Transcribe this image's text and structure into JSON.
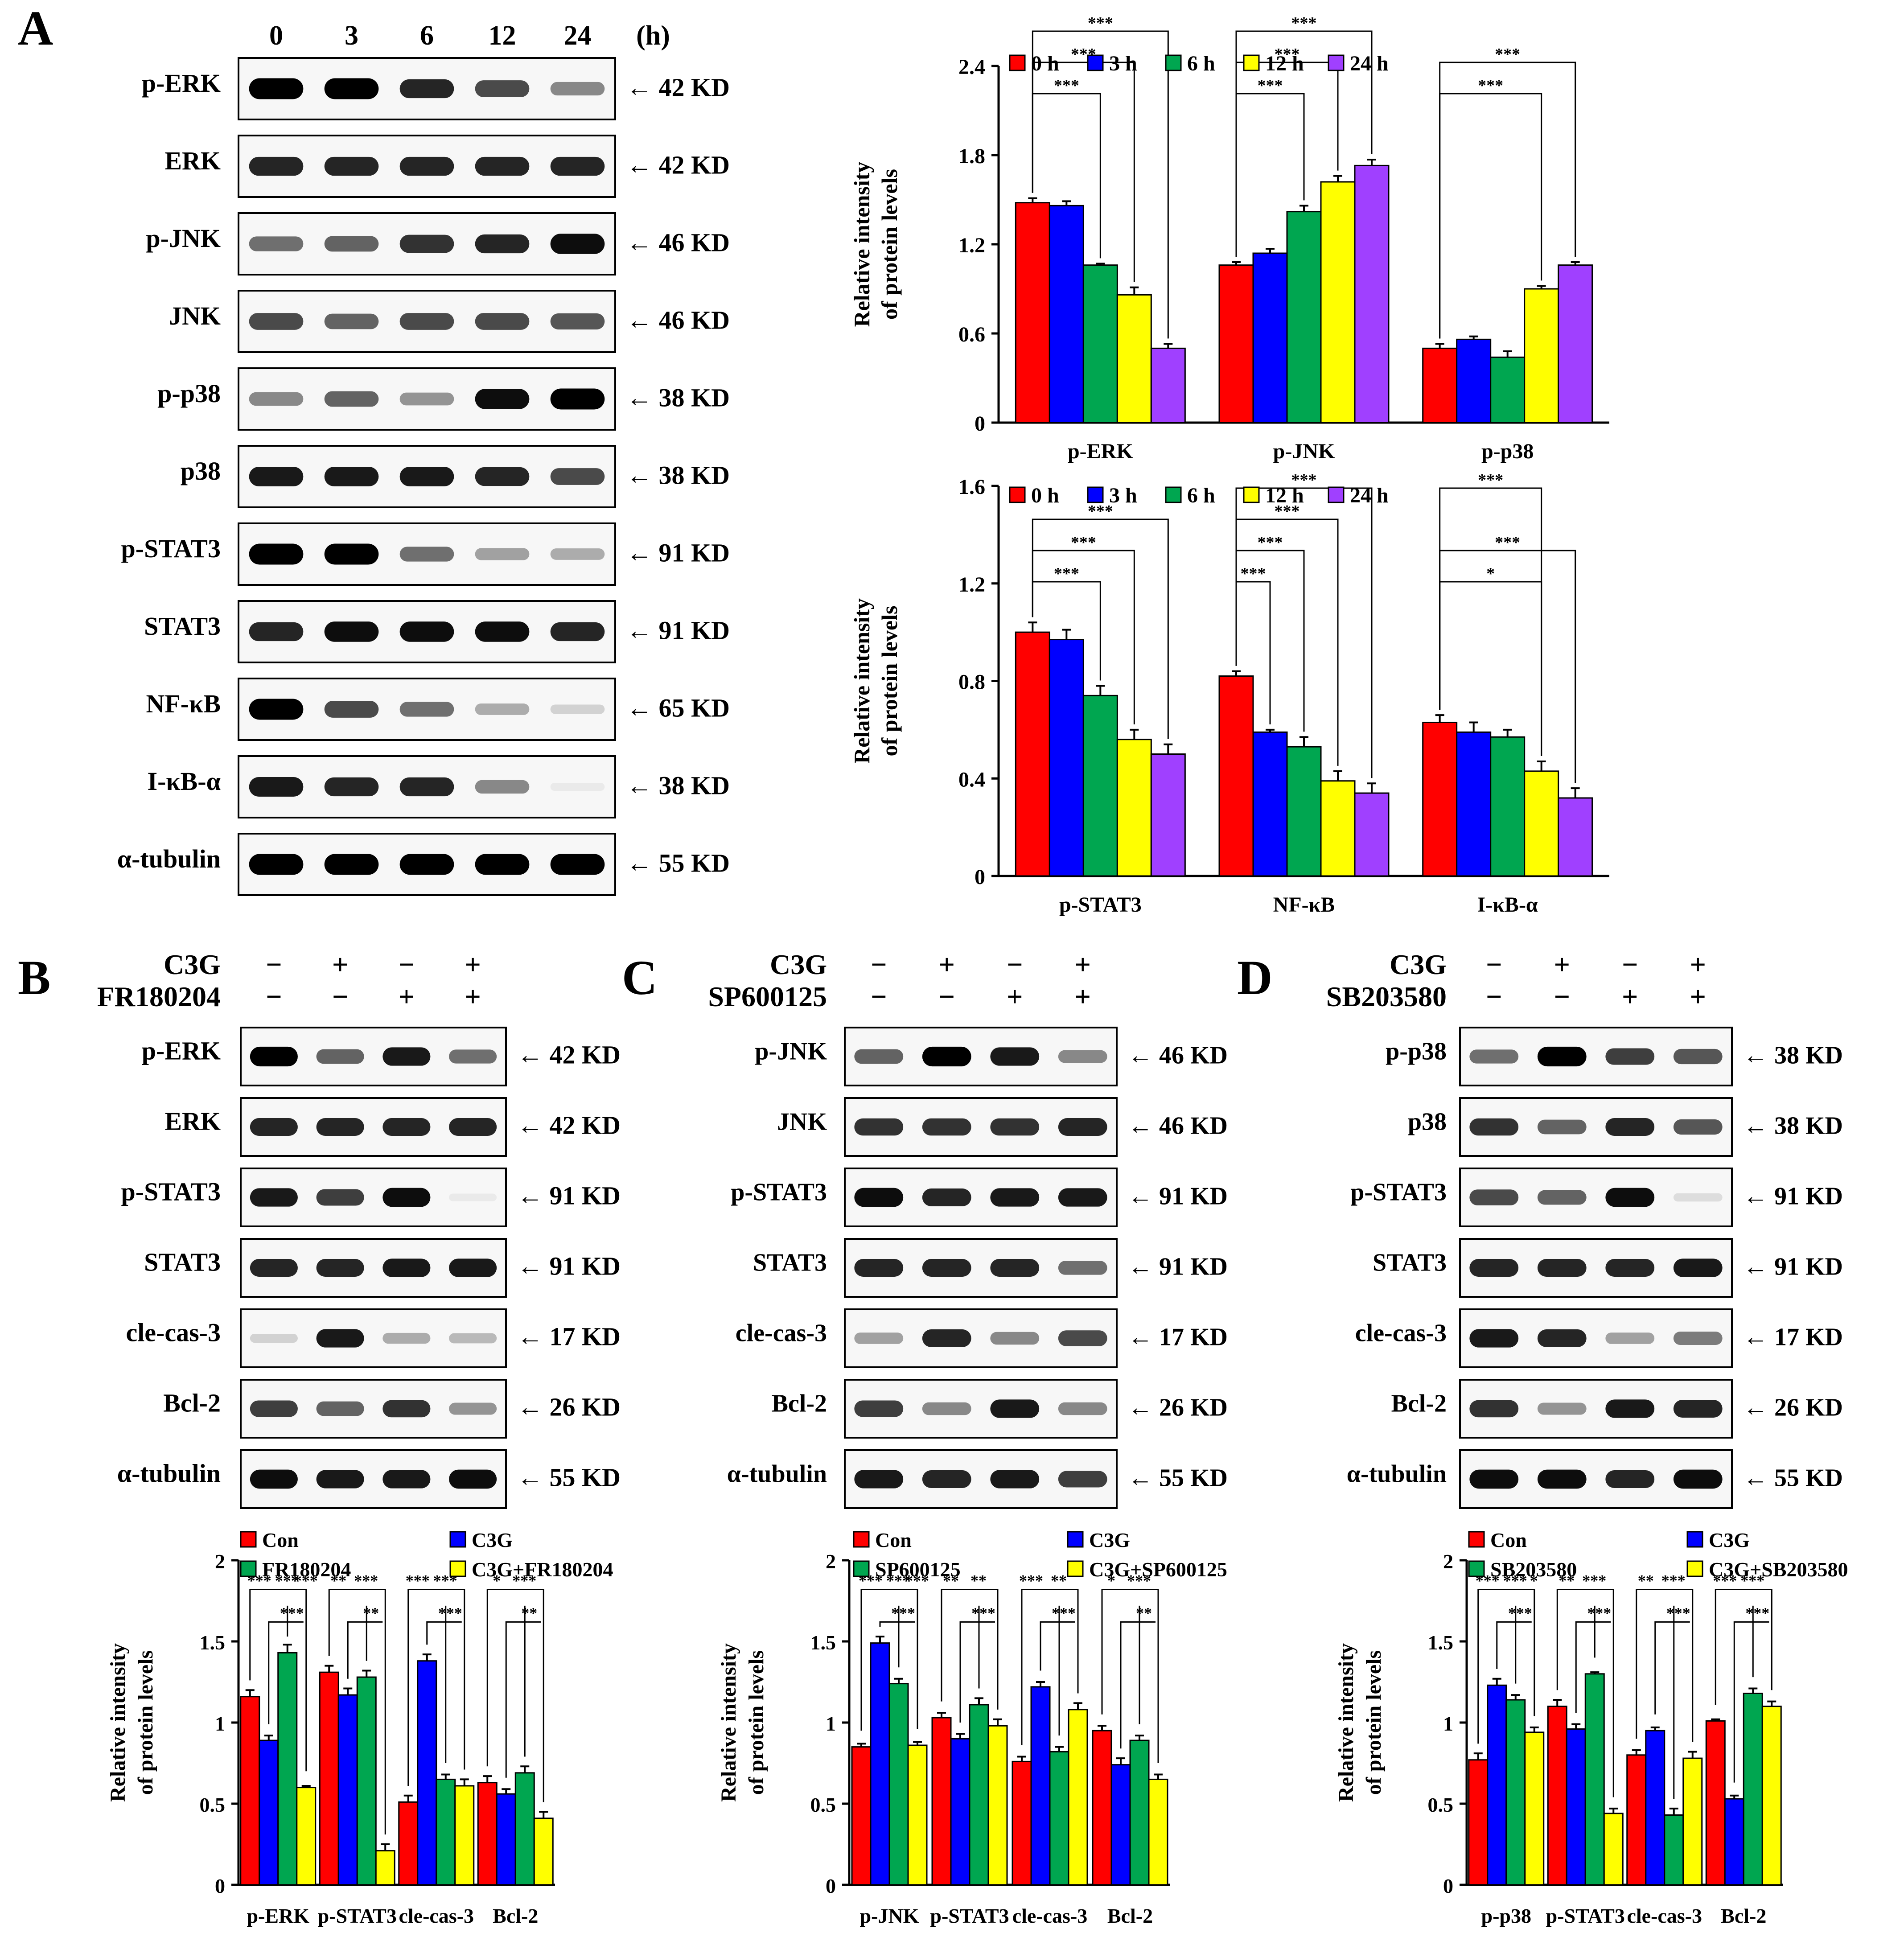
{
  "panel_labels": [
    "A",
    "B",
    "C",
    "D"
  ],
  "units": {
    "hours": "(h)"
  },
  "panelA": {
    "timepoints": [
      "0",
      "3",
      "6",
      "12",
      "24"
    ],
    "blots": [
      {
        "name": "p-ERK",
        "kd": "42 KD",
        "intensities": [
          1.0,
          1.0,
          0.85,
          0.7,
          0.45
        ]
      },
      {
        "name": "ERK",
        "kd": "42 KD",
        "intensities": [
          0.85,
          0.85,
          0.85,
          0.85,
          0.85
        ]
      },
      {
        "name": "p-JNK",
        "kd": "46 KD",
        "intensities": [
          0.55,
          0.6,
          0.8,
          0.85,
          0.95
        ]
      },
      {
        "name": "JNK",
        "kd": "46 KD",
        "intensities": [
          0.7,
          0.6,
          0.7,
          0.7,
          0.65
        ]
      },
      {
        "name": "p-p38",
        "kd": "38 KD",
        "intensities": [
          0.45,
          0.6,
          0.4,
          0.95,
          1.0
        ]
      },
      {
        "name": "p38",
        "kd": "38 KD",
        "intensities": [
          0.9,
          0.9,
          0.9,
          0.85,
          0.7
        ]
      },
      {
        "name": "p-STAT3",
        "kd": "91 KD",
        "intensities": [
          1.0,
          1.0,
          0.55,
          0.35,
          0.3
        ]
      },
      {
        "name": "STAT3",
        "kd": "91 KD",
        "intensities": [
          0.85,
          0.95,
          0.95,
          0.95,
          0.85
        ]
      },
      {
        "name": "NF-κB",
        "kd": "65 KD",
        "intensities": [
          1.0,
          0.7,
          0.55,
          0.3,
          0.15
        ]
      },
      {
        "name": "I-κB-α",
        "kd": "38 KD",
        "intensities": [
          0.9,
          0.85,
          0.85,
          0.45,
          0.05
        ]
      },
      {
        "name": "α-tubulin",
        "kd": "55 KD",
        "intensities": [
          1.0,
          1.0,
          1.0,
          1.0,
          1.0
        ]
      }
    ]
  },
  "panelB": {
    "treatments": [
      {
        "name": "C3G",
        "signs": [
          "−",
          "+",
          "−",
          "+"
        ]
      },
      {
        "name": "FR180204",
        "signs": [
          "−",
          "−",
          "+",
          "+"
        ]
      }
    ],
    "blots": [
      {
        "name": "p-ERK",
        "kd": "42 KD",
        "intensities": [
          1.0,
          0.6,
          0.9,
          0.55
        ]
      },
      {
        "name": "ERK",
        "kd": "42 KD",
        "intensities": [
          0.85,
          0.85,
          0.85,
          0.85
        ]
      },
      {
        "name": "p-STAT3",
        "kd": "91 KD",
        "intensities": [
          0.9,
          0.75,
          0.95,
          0.05
        ]
      },
      {
        "name": "STAT3",
        "kd": "91 KD",
        "intensities": [
          0.85,
          0.85,
          0.9,
          0.9
        ]
      },
      {
        "name": "cle-cas-3",
        "kd": "17 KD",
        "intensities": [
          0.15,
          0.9,
          0.3,
          0.25
        ]
      },
      {
        "name": "Bcl-2",
        "kd": "26 KD",
        "intensities": [
          0.75,
          0.6,
          0.8,
          0.4
        ]
      },
      {
        "name": "α-tubulin",
        "kd": "55 KD",
        "intensities": [
          0.95,
          0.9,
          0.9,
          0.95
        ]
      }
    ]
  },
  "panelC": {
    "treatments": [
      {
        "name": "C3G",
        "signs": [
          "−",
          "+",
          "−",
          "+"
        ]
      },
      {
        "name": "SP600125",
        "signs": [
          "−",
          "−",
          "+",
          "+"
        ]
      }
    ],
    "blots": [
      {
        "name": "p-JNK",
        "kd": "46 KD",
        "intensities": [
          0.6,
          1.0,
          0.9,
          0.45
        ]
      },
      {
        "name": "JNK",
        "kd": "46 KD",
        "intensities": [
          0.8,
          0.8,
          0.8,
          0.85
        ]
      },
      {
        "name": "p-STAT3",
        "kd": "91 KD",
        "intensities": [
          0.95,
          0.85,
          0.9,
          0.9
        ]
      },
      {
        "name": "STAT3",
        "kd": "91 KD",
        "intensities": [
          0.85,
          0.85,
          0.85,
          0.55
        ]
      },
      {
        "name": "cle-cas-3",
        "kd": "17 KD",
        "intensities": [
          0.35,
          0.85,
          0.45,
          0.7
        ]
      },
      {
        "name": "Bcl-2",
        "kd": "26 KD",
        "intensities": [
          0.75,
          0.45,
          0.9,
          0.45
        ]
      },
      {
        "name": "α-tubulin",
        "kd": "55 KD",
        "intensities": [
          0.9,
          0.85,
          0.9,
          0.75
        ]
      }
    ]
  },
  "panelD": {
    "treatments": [
      {
        "name": "C3G",
        "signs": [
          "−",
          "+",
          "−",
          "+"
        ]
      },
      {
        "name": "SB203580",
        "signs": [
          "−",
          "−",
          "+",
          "+"
        ]
      }
    ],
    "blots": [
      {
        "name": "p-p38",
        "kd": "38 KD",
        "intensities": [
          0.55,
          1.0,
          0.75,
          0.65
        ]
      },
      {
        "name": "p38",
        "kd": "38 KD",
        "intensities": [
          0.8,
          0.6,
          0.85,
          0.65
        ]
      },
      {
        "name": "p-STAT3",
        "kd": "91 KD",
        "intensities": [
          0.7,
          0.6,
          0.95,
          0.1
        ]
      },
      {
        "name": "STAT3",
        "kd": "91 KD",
        "intensities": [
          0.85,
          0.85,
          0.85,
          0.9
        ]
      },
      {
        "name": "cle-cas-3",
        "kd": "17 KD",
        "intensities": [
          0.9,
          0.85,
          0.35,
          0.5
        ]
      },
      {
        "name": "Bcl-2",
        "kd": "26 KD",
        "intensities": [
          0.8,
          0.4,
          0.9,
          0.85
        ]
      },
      {
        "name": "α-tubulin",
        "kd": "55 KD",
        "intensities": [
          0.95,
          0.95,
          0.85,
          0.95
        ]
      }
    ]
  },
  "colors": {
    "red": "#ff0000",
    "blue": "#0000ff",
    "green": "#00a650",
    "yellow": "#ffff00",
    "purple": "#a040ff"
  },
  "chart_data": [
    {
      "id": "A_top",
      "type": "bar",
      "ylabel": [
        "Relative intensity",
        "of protein levels"
      ],
      "ylim": [
        0,
        2.4
      ],
      "yticks": [
        "0",
        "0.6",
        "1.2",
        "1.8",
        "2.4"
      ],
      "categories": [
        "p-ERK",
        "p-JNK",
        "p-p38"
      ],
      "series": [
        {
          "name": "0 h",
          "color": "#ff0000",
          "values": [
            1.48,
            1.06,
            0.5
          ],
          "errors": [
            0.03,
            0.02,
            0.03
          ]
        },
        {
          "name": "3 h",
          "color": "#0000ff",
          "values": [
            1.46,
            1.14,
            0.56
          ],
          "errors": [
            0.03,
            0.03,
            0.02
          ]
        },
        {
          "name": "6 h",
          "color": "#00a650",
          "values": [
            1.06,
            1.42,
            0.44
          ],
          "errors": [
            0.01,
            0.04,
            0.04
          ]
        },
        {
          "name": "12 h",
          "color": "#ffff00",
          "values": [
            0.86,
            1.62,
            0.9
          ],
          "errors": [
            0.05,
            0.04,
            0.02
          ]
        },
        {
          "name": "24 h",
          "color": "#a040ff",
          "values": [
            0.5,
            1.73,
            1.06
          ],
          "errors": [
            0.03,
            0.04,
            0.02
          ]
        }
      ],
      "significance": [
        {
          "group": 0,
          "from": 0,
          "to": 2,
          "label": "***"
        },
        {
          "group": 0,
          "from": 0,
          "to": 3,
          "label": "***"
        },
        {
          "group": 0,
          "from": 0,
          "to": 4,
          "label": "***"
        },
        {
          "group": 1,
          "from": 0,
          "to": 2,
          "label": "***"
        },
        {
          "group": 1,
          "from": 0,
          "to": 3,
          "label": "***"
        },
        {
          "group": 1,
          "from": 0,
          "to": 4,
          "label": "***"
        },
        {
          "group": 2,
          "from": 0,
          "to": 3,
          "label": "***"
        },
        {
          "group": 2,
          "from": 0,
          "to": 4,
          "label": "***"
        }
      ]
    },
    {
      "id": "A_bottom",
      "type": "bar",
      "ylabel": [
        "Relative intensity",
        "of protein levels"
      ],
      "ylim": [
        0,
        1.6
      ],
      "yticks": [
        "0",
        "0.4",
        "0.8",
        "1.2",
        "1.6"
      ],
      "categories": [
        "p-STAT3",
        "NF-κB",
        "I-κB-α"
      ],
      "series": [
        {
          "name": "0 h",
          "color": "#ff0000",
          "values": [
            1.0,
            0.82,
            0.63
          ],
          "errors": [
            0.04,
            0.02,
            0.03
          ]
        },
        {
          "name": "3 h",
          "color": "#0000ff",
          "values": [
            0.97,
            0.59,
            0.59
          ],
          "errors": [
            0.04,
            0.01,
            0.04
          ]
        },
        {
          "name": "6 h",
          "color": "#00a650",
          "values": [
            0.74,
            0.53,
            0.57
          ],
          "errors": [
            0.04,
            0.04,
            0.03
          ]
        },
        {
          "name": "12 h",
          "color": "#ffff00",
          "values": [
            0.56,
            0.39,
            0.43
          ],
          "errors": [
            0.04,
            0.04,
            0.04
          ]
        },
        {
          "name": "24 h",
          "color": "#a040ff",
          "values": [
            0.5,
            0.34,
            0.32
          ],
          "errors": [
            0.04,
            0.04,
            0.04
          ]
        }
      ],
      "significance": [
        {
          "group": 0,
          "from": 0,
          "to": 2,
          "label": "***"
        },
        {
          "group": 0,
          "from": 0,
          "to": 3,
          "label": "***"
        },
        {
          "group": 0,
          "from": 0,
          "to": 4,
          "label": "***"
        },
        {
          "group": 1,
          "from": 0,
          "to": 1,
          "label": "***"
        },
        {
          "group": 1,
          "from": 0,
          "to": 2,
          "label": "***"
        },
        {
          "group": 1,
          "from": 0,
          "to": 3,
          "label": "***"
        },
        {
          "group": 1,
          "from": 0,
          "to": 4,
          "label": "***"
        },
        {
          "group": 2,
          "from": 0,
          "to": 3,
          "label": "*"
        },
        {
          "group": 2,
          "from": 0,
          "to": 4,
          "label": "***"
        },
        {
          "group": 2,
          "from": 0,
          "to": 3,
          "label": "***",
          "level": 2
        }
      ]
    },
    {
      "id": "B_chart",
      "type": "bar",
      "ylabel": [
        "Relative intensity",
        "of protein levels"
      ],
      "ylim": [
        0,
        2
      ],
      "yticks": [
        "0",
        "0.5",
        "1",
        "1.5",
        "2"
      ],
      "categories": [
        "p-ERK",
        "p-STAT3",
        "cle-cas-3",
        "Bcl-2"
      ],
      "series": [
        {
          "name": "Con",
          "color": "#ff0000",
          "values": [
            1.16,
            1.31,
            0.51,
            0.63
          ],
          "errors": [
            0.04,
            0.04,
            0.04,
            0.04
          ]
        },
        {
          "name": "C3G",
          "color": "#0000ff",
          "values": [
            0.89,
            1.17,
            1.38,
            0.56
          ],
          "errors": [
            0.03,
            0.04,
            0.04,
            0.03
          ]
        },
        {
          "name": "FR180204",
          "color": "#00a650",
          "values": [
            1.43,
            1.28,
            0.65,
            0.69
          ],
          "errors": [
            0.05,
            0.04,
            0.03,
            0.04
          ]
        },
        {
          "name": "C3G+FR180204",
          "color": "#ffff00",
          "values": [
            0.6,
            0.21,
            0.61,
            0.41
          ],
          "errors": [
            0.01,
            0.04,
            0.04,
            0.04
          ]
        }
      ],
      "significance": [
        {
          "group": 0,
          "labels": [
            "***",
            "***",
            "***",
            "***"
          ]
        },
        {
          "group": 1,
          "labels": [
            "**",
            "***",
            "**"
          ]
        },
        {
          "group": 2,
          "labels": [
            "***",
            "***",
            "***"
          ]
        },
        {
          "group": 3,
          "labels": [
            "*",
            "***",
            "**"
          ]
        }
      ]
    },
    {
      "id": "C_chart",
      "type": "bar",
      "ylabel": [
        "Relative intensity",
        "of protein levels"
      ],
      "ylim": [
        0,
        2
      ],
      "yticks": [
        "0",
        "0.5",
        "1",
        "1.5",
        "2"
      ],
      "categories": [
        "p-JNK",
        "p-STAT3",
        "cle-cas-3",
        "Bcl-2"
      ],
      "series": [
        {
          "name": "Con",
          "color": "#ff0000",
          "values": [
            0.85,
            1.03,
            0.76,
            0.95
          ],
          "errors": [
            0.02,
            0.03,
            0.03,
            0.03
          ]
        },
        {
          "name": "C3G",
          "color": "#0000ff",
          "values": [
            1.49,
            0.9,
            1.22,
            0.74
          ],
          "errors": [
            0.04,
            0.03,
            0.03,
            0.04
          ]
        },
        {
          "name": "SP600125",
          "color": "#00a650",
          "values": [
            1.24,
            1.11,
            0.82,
            0.89
          ],
          "errors": [
            0.03,
            0.04,
            0.03,
            0.03
          ]
        },
        {
          "name": "C3G+SP600125",
          "color": "#ffff00",
          "values": [
            0.86,
            0.98,
            1.08,
            0.65
          ],
          "errors": [
            0.02,
            0.04,
            0.04,
            0.03
          ]
        }
      ],
      "significance": [
        {
          "group": 0,
          "labels": [
            "***",
            "***",
            "***",
            "***"
          ]
        },
        {
          "group": 1,
          "labels": [
            "**",
            "**",
            "***"
          ]
        },
        {
          "group": 2,
          "labels": [
            "***",
            "**",
            "***"
          ]
        },
        {
          "group": 3,
          "labels": [
            "*",
            "***",
            "**"
          ]
        }
      ]
    },
    {
      "id": "D_chart",
      "type": "bar",
      "ylabel": [
        "Relative intensity",
        "of protein levels"
      ],
      "ylim": [
        0,
        2
      ],
      "yticks": [
        "0",
        "0.5",
        "1",
        "1.5",
        "2"
      ],
      "categories": [
        "p-p38",
        "p-STAT3",
        "cle-cas-3",
        "Bcl-2"
      ],
      "series": [
        {
          "name": "Con",
          "color": "#ff0000",
          "values": [
            0.77,
            1.1,
            0.8,
            1.01
          ],
          "errors": [
            0.04,
            0.04,
            0.03,
            0.01
          ]
        },
        {
          "name": "C3G",
          "color": "#0000ff",
          "values": [
            1.23,
            0.96,
            0.95,
            0.53
          ],
          "errors": [
            0.04,
            0.03,
            0.02,
            0.02
          ]
        },
        {
          "name": "SB203580",
          "color": "#00a650",
          "values": [
            1.14,
            1.3,
            0.43,
            1.18
          ],
          "errors": [
            0.03,
            0.01,
            0.04,
            0.03
          ]
        },
        {
          "name": "C3G+SB203580",
          "color": "#ffff00",
          "values": [
            0.94,
            0.44,
            0.78,
            1.1
          ],
          "errors": [
            0.03,
            0.03,
            0.04,
            0.03
          ]
        }
      ],
      "significance": [
        {
          "group": 0,
          "labels": [
            "***",
            "***",
            "***",
            "*"
          ]
        },
        {
          "group": 1,
          "labels": [
            "**",
            "***",
            "***"
          ]
        },
        {
          "group": 2,
          "labels": [
            "**",
            "***",
            "***"
          ]
        },
        {
          "group": 3,
          "labels": [
            "***",
            "***",
            "***"
          ]
        }
      ]
    }
  ]
}
